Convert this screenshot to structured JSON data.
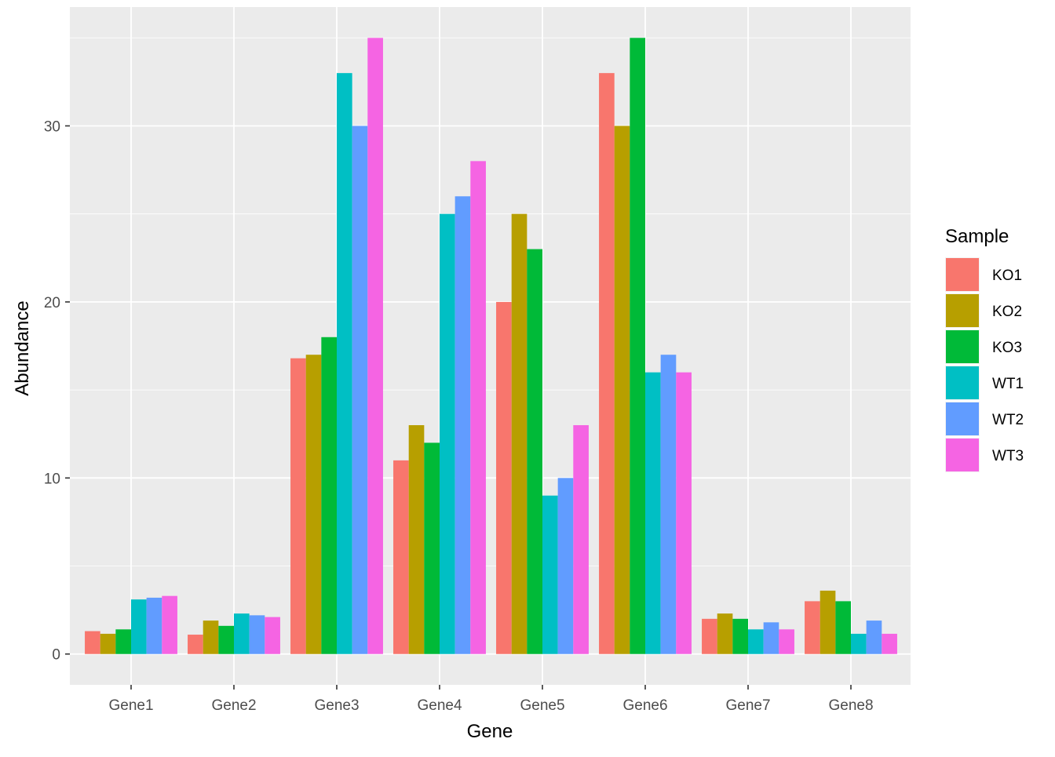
{
  "chart_data": {
    "type": "bar",
    "title": "",
    "xlabel": "Gene",
    "ylabel": "Abundance",
    "categories": [
      "Gene1",
      "Gene2",
      "Gene3",
      "Gene4",
      "Gene5",
      "Gene6",
      "Gene7",
      "Gene8"
    ],
    "series": [
      {
        "name": "KO1",
        "color": "#F8766D",
        "values": [
          1.3,
          1.1,
          16.8,
          11,
          20,
          33,
          2.0,
          3.0
        ]
      },
      {
        "name": "KO2",
        "color": "#B79F00",
        "values": [
          1.15,
          1.9,
          17,
          13,
          25,
          30,
          2.3,
          3.6
        ]
      },
      {
        "name": "KO3",
        "color": "#00BA38",
        "values": [
          1.4,
          1.6,
          18,
          12,
          23,
          35,
          2.0,
          3.0
        ]
      },
      {
        "name": "WT1",
        "color": "#00BFC4",
        "values": [
          3.1,
          2.3,
          33,
          25,
          9,
          16,
          1.4,
          1.15
        ]
      },
      {
        "name": "WT2",
        "color": "#619CFF",
        "values": [
          3.2,
          2.2,
          30,
          26,
          10,
          17,
          1.8,
          1.9
        ]
      },
      {
        "name": "WT3",
        "color": "#F564E3",
        "values": [
          3.3,
          2.1,
          35,
          28,
          13,
          16,
          1.4,
          1.15
        ]
      }
    ],
    "ylim": [
      -1.75,
      36.75
    ],
    "yticks": [
      0,
      10,
      20,
      30
    ],
    "grid": true,
    "legend": {
      "title": "Sample",
      "position": "right"
    },
    "colors": {
      "panel_background": "#EBEBEB",
      "grid": "#FFFFFF"
    }
  }
}
